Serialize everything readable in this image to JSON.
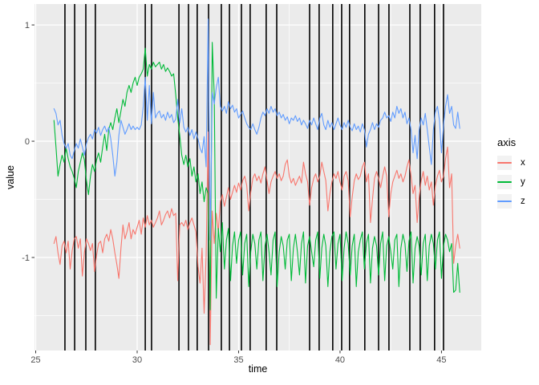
{
  "figure": {
    "background": "#FFFFFF",
    "panel_background": "#EBEBEB",
    "grid_color": "#FFFFFF",
    "event_line_color": "#000000",
    "tick_mark_color": "#333333",
    "tick_label_color": "#4D4D4D",
    "axis_title_color": "#000000"
  },
  "axis_titles": {
    "x": "time",
    "y": "value"
  },
  "legend": {
    "title": "axis",
    "position": "right",
    "key_fill": "#F2F2F2",
    "entries": [
      {
        "label": "x",
        "color": "#F8766D"
      },
      {
        "label": "y",
        "color": "#00BA38"
      },
      {
        "label": "z",
        "color": "#619CFF"
      }
    ]
  },
  "chart_data": {
    "type": "line",
    "title": "",
    "xlabel": "time",
    "ylabel": "value",
    "x_domain": [
      24.94,
      46.96
    ],
    "y_domain": [
      -1.8,
      1.18
    ],
    "x_ticks_major": [
      25,
      30,
      35,
      40,
      45
    ],
    "x_ticks_minor": [
      27.5,
      32.5,
      37.5,
      42.5
    ],
    "y_ticks_major": [
      -1,
      0,
      1
    ],
    "y_ticks_minor": [
      -1.5,
      -0.5,
      0.5
    ],
    "grid": true,
    "legend": {
      "title": "axis",
      "position": "right",
      "entries": [
        "x",
        "y",
        "z"
      ]
    },
    "event_lines_x": [
      26.44,
      26.92,
      27.47,
      27.94,
      30.4,
      30.71,
      32.06,
      32.53,
      32.96,
      33.52,
      34.15,
      34.55,
      35.14,
      35.57,
      36.36,
      36.88,
      38.5,
      38.97,
      39.64,
      40.08,
      40.47,
      41.22,
      41.9,
      42.41,
      43.44,
      43.95,
      44.66,
      45.1
    ],
    "series_t0": 25.9,
    "series_dt": 0.1,
    "series": [
      {
        "name": "x",
        "color": "#F8766D",
        "values": [
          -0.88,
          -0.82,
          -0.96,
          -1.06,
          -0.9,
          -0.86,
          -0.96,
          -0.86,
          -1.1,
          -0.94,
          -0.84,
          -0.82,
          -0.92,
          -0.84,
          -1.16,
          -0.96,
          -0.84,
          -0.88,
          -0.94,
          -0.88,
          -1.12,
          -0.98,
          -0.88,
          -0.86,
          -0.96,
          -0.84,
          -0.8,
          -0.86,
          -0.76,
          -0.84,
          -0.96,
          -1.06,
          -1.18,
          -0.92,
          -0.72,
          -0.84,
          -0.78,
          -0.7,
          -0.84,
          -0.76,
          -0.8,
          -0.74,
          -0.68,
          -0.8,
          -0.66,
          -0.74,
          -0.64,
          -0.72,
          -0.68,
          -0.74,
          -0.7,
          -0.66,
          -0.6,
          -0.72,
          -0.68,
          -0.63,
          -0.6,
          -0.66,
          -0.58,
          -0.64,
          -0.62,
          -1.2,
          -0.72,
          -0.7,
          -0.73,
          -0.68,
          -0.76,
          -0.7,
          -0.66,
          -0.72,
          -0.78,
          -1.08,
          -1.22,
          -0.92,
          -1.48,
          -0.98,
          0.08,
          -1.75,
          -0.6,
          -0.88,
          -0.62,
          -0.78,
          -0.52,
          -0.46,
          -0.56,
          -0.48,
          -0.4,
          -0.5,
          -0.44,
          -0.38,
          -0.44,
          -0.36,
          -0.42,
          -0.34,
          -0.3,
          -0.38,
          -0.6,
          -0.44,
          -0.32,
          -0.28,
          -0.34,
          -0.3,
          -0.36,
          -0.28,
          -0.22,
          -0.34,
          -0.45,
          -0.35,
          -0.3,
          -0.26,
          -0.32,
          -0.28,
          -0.34,
          -0.3,
          -0.2,
          -0.16,
          -0.3,
          -0.36,
          -0.32,
          -0.38,
          -0.34,
          -0.3,
          -0.36,
          -0.18,
          -0.28,
          -0.35,
          -0.55,
          -0.4,
          -0.32,
          -0.28,
          -0.35,
          -0.3,
          -0.18,
          -0.26,
          -0.34,
          -0.6,
          -0.45,
          -0.35,
          -0.28,
          -0.32,
          -0.26,
          -0.35,
          -0.42,
          -0.3,
          -0.26,
          -0.34,
          -0.65,
          -0.48,
          -0.34,
          -0.28,
          -0.33,
          -0.3,
          -0.22,
          -0.18,
          -0.35,
          -0.28,
          -0.7,
          -0.5,
          -0.32,
          -0.26,
          -0.32,
          -0.4,
          -0.3,
          -0.22,
          -0.3,
          -0.65,
          -0.45,
          -0.35,
          -0.3,
          -0.25,
          -0.32,
          -0.28,
          -0.35,
          -0.3,
          -0.22,
          -0.16,
          -0.3,
          -0.45,
          -0.38,
          -0.7,
          -0.48,
          -0.34,
          -0.26,
          -0.38,
          -0.3,
          -0.42,
          -0.35,
          -0.55,
          -0.38,
          -0.3,
          -0.25,
          -0.35,
          -0.3,
          -0.15,
          -0.05,
          -0.4,
          -0.28,
          -1.05,
          -0.9,
          -0.8,
          -0.92
        ]
      },
      {
        "name": "y",
        "color": "#00BA38",
        "values": [
          0.18,
          -0.05,
          -0.3,
          -0.2,
          -0.12,
          -0.18,
          -0.06,
          -0.15,
          -0.22,
          -0.26,
          -0.32,
          -0.4,
          -0.26,
          -0.18,
          -0.1,
          -0.16,
          -0.34,
          -0.46,
          -0.3,
          -0.2,
          -0.26,
          -0.16,
          -0.1,
          -0.18,
          -0.05,
          0.06,
          -0.08,
          0.1,
          0.16,
          0.1,
          0.2,
          0.28,
          0.16,
          0.26,
          0.36,
          0.3,
          0.42,
          0.48,
          0.42,
          0.5,
          0.55,
          0.48,
          0.55,
          0.58,
          0.62,
          0.8,
          0.56,
          0.66,
          0.62,
          0.68,
          0.64,
          0.66,
          0.68,
          0.62,
          0.66,
          0.6,
          0.63,
          0.6,
          0.56,
          0.58,
          0.4,
          0.2,
          0.05,
          -0.12,
          -0.2,
          -0.12,
          -0.22,
          -0.15,
          -0.3,
          -0.22,
          -0.35,
          -0.28,
          -0.45,
          -0.35,
          -0.52,
          -0.4,
          -0.45,
          -1.45,
          0.85,
          0.4,
          -1.35,
          -0.75,
          -0.95,
          -0.7,
          -1.1,
          -0.85,
          -0.75,
          -1.2,
          -0.9,
          -0.78,
          -1.05,
          -0.85,
          -0.78,
          -1.15,
          -0.88,
          -0.8,
          -1.25,
          -0.95,
          -0.8,
          -0.88,
          -1.1,
          -0.85,
          -0.78,
          -1.2,
          -0.9,
          -0.8,
          -0.95,
          -1.15,
          -0.85,
          -0.78,
          -1.25,
          -0.95,
          -0.82,
          -0.9,
          -1.1,
          -0.85,
          -0.8,
          -1.2,
          -0.92,
          -0.8,
          -0.95,
          -1.15,
          -0.88,
          -0.78,
          -1.22,
          -0.9,
          -0.82,
          -0.95,
          -1.08,
          -0.85,
          -0.78,
          -1.18,
          -0.92,
          -0.8,
          -0.9,
          -1.25,
          -0.95,
          -0.82,
          -0.78,
          -1.1,
          -0.88,
          -0.8,
          -1.2,
          -0.92,
          -0.78,
          -0.88,
          -1.15,
          -0.9,
          -0.8,
          -1.25,
          -0.95,
          -0.85,
          -0.78,
          -1.1,
          -0.88,
          -0.8,
          -1.22,
          -0.92,
          -0.82,
          -0.9,
          -1.15,
          -0.88,
          -0.78,
          -1.2,
          -0.9,
          -0.82,
          -0.95,
          -1.1,
          -0.85,
          -0.8,
          -1.25,
          -0.92,
          -0.8,
          -0.88,
          -1.12,
          -0.86,
          -0.78,
          -1.22,
          -0.92,
          -0.82,
          -0.9,
          -1.15,
          -0.88,
          -0.8,
          -1.2,
          -0.9,
          -0.8,
          -0.88,
          -1.1,
          -0.85,
          -0.78,
          -1.18,
          -0.9,
          -0.8,
          -0.85,
          -0.95,
          -0.88,
          -1.3,
          -1.28,
          -1.05,
          -1.3
        ]
      },
      {
        "name": "z",
        "color": "#619CFF",
        "values": [
          0.28,
          0.24,
          0.14,
          0.18,
          0.05,
          -0.02,
          -0.06,
          -0.02,
          -0.12,
          -0.15,
          -0.08,
          -0.02,
          -0.06,
          0.02,
          -0.05,
          -0.12,
          -0.02,
          0.03,
          0.06,
          0.02,
          0.1,
          0.07,
          0.12,
          0.05,
          0.1,
          0.13,
          0.08,
          0.12,
          0.02,
          -0.12,
          -0.3,
          -0.18,
          0.05,
          0.18,
          0.12,
          0.06,
          0.1,
          0.15,
          0.1,
          0.13,
          0.1,
          0.12,
          0.1,
          0.14,
          0.3,
          0.55,
          0.18,
          0.48,
          0.15,
          0.42,
          0.2,
          0.24,
          0.26,
          0.2,
          0.23,
          0.18,
          0.25,
          0.2,
          0.23,
          0.16,
          0.19,
          0.36,
          0.16,
          0.28,
          0.12,
          0.08,
          0.12,
          0.05,
          0.1,
          0.02,
          0.08,
          0.02,
          -0.06,
          -0.1,
          0.04,
          -0.22,
          1.05,
          -0.85,
          0.42,
          0.32,
          0.46,
          0.55,
          0.3,
          0.26,
          0.3,
          0.24,
          0.34,
          0.28,
          0.31,
          0.25,
          0.28,
          0.2,
          0.23,
          0.26,
          0.2,
          0.15,
          0.12,
          0.1,
          0.15,
          0.1,
          0.06,
          0.12,
          0.2,
          0.25,
          0.22,
          0.28,
          0.24,
          0.3,
          0.25,
          0.28,
          0.22,
          0.25,
          0.2,
          0.23,
          0.18,
          0.21,
          0.15,
          0.2,
          0.18,
          0.22,
          0.17,
          0.2,
          0.14,
          0.18,
          0.15,
          0.11,
          0.18,
          0.14,
          0.2,
          0.15,
          0.1,
          0.2,
          0.24,
          0.14,
          0.1,
          0.18,
          0.12,
          0.16,
          0.1,
          0.15,
          0.2,
          0.14,
          0.1,
          0.16,
          0.12,
          0.18,
          0.12,
          0.09,
          0.15,
          0.1,
          0.13,
          0.08,
          0.15,
          0.1,
          -0.05,
          0.06,
          0.1,
          0.16,
          0.1,
          0.15,
          0.12,
          0.18,
          0.2,
          0.25,
          0.2,
          0.22,
          0.17,
          0.25,
          0.2,
          0.3,
          0.24,
          0.28,
          0.2,
          0.25,
          0.15,
          0.2,
          0.1,
          -0.1,
          0.05,
          -0.15,
          0.1,
          0.2,
          0.14,
          0.24,
          0.1,
          -0.05,
          -0.2,
          0.1,
          0.25,
          0.3,
          0.18,
          -0.1,
          0.14,
          0.3,
          0.4,
          0.24,
          0.3,
          0.14,
          0.11,
          0.25,
          0.11
        ]
      }
    ]
  }
}
